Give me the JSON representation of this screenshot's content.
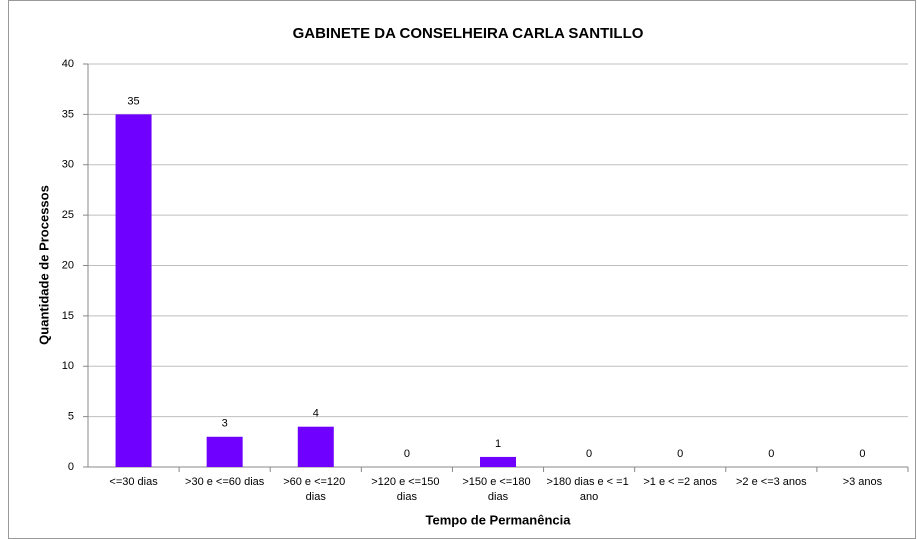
{
  "chart_data": {
    "type": "bar",
    "title": "GABINETE DA CONSELHEIRA CARLA SANTILLO",
    "x_label": "Tempo de Permanência",
    "y_label": "Quantidade de Processos",
    "categories": [
      "<=30 dias",
      ">30 e <=60 dias",
      ">60 e <=120 dias",
      ">120 e <=150 dias",
      ">150 e <=180 dias",
      ">180 dias e < =1 ano",
      ">1 e < =2 anos",
      ">2 e <=3 anos",
      ">3 anos"
    ],
    "values": [
      35,
      3,
      4,
      0,
      1,
      0,
      0,
      0,
      0
    ],
    "color": "#6f00ff",
    "ylim": [
      0,
      40
    ],
    "yticks": [
      0,
      5,
      10,
      15,
      20,
      25,
      30,
      35,
      40
    ],
    "grid": true
  }
}
